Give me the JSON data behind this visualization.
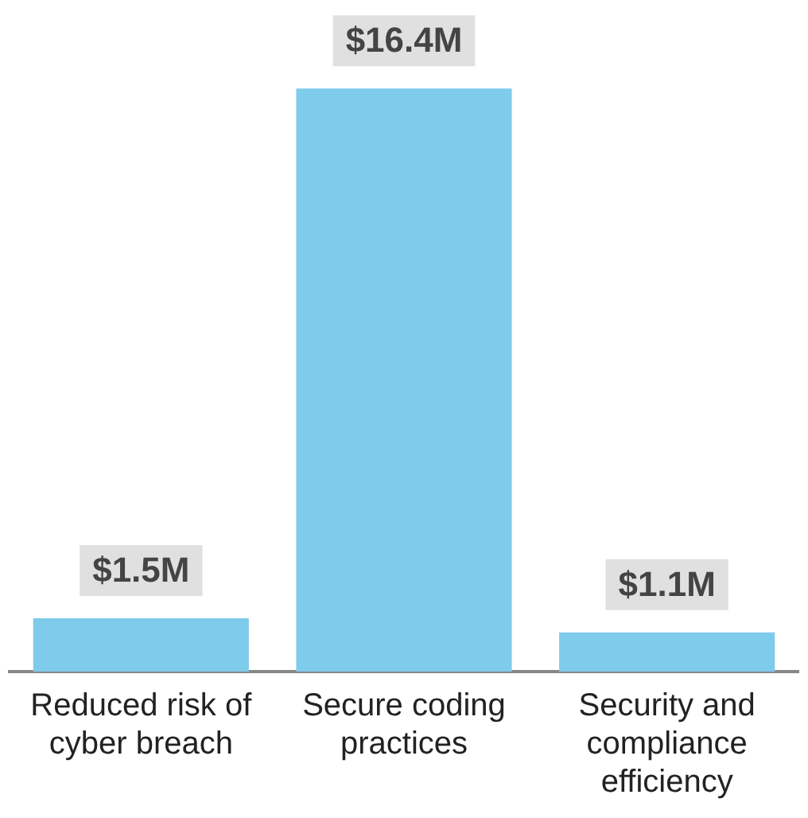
{
  "chart_data": {
    "type": "bar",
    "categories": [
      "Reduced risk of cyber breach",
      "Secure coding practices",
      "Security and compliance efficiency"
    ],
    "values": [
      1.5,
      16.4,
      1.1
    ],
    "value_labels": [
      "$1.5M",
      "$16.4M",
      "$1.1M"
    ],
    "color": "#7fcbec"
  }
}
